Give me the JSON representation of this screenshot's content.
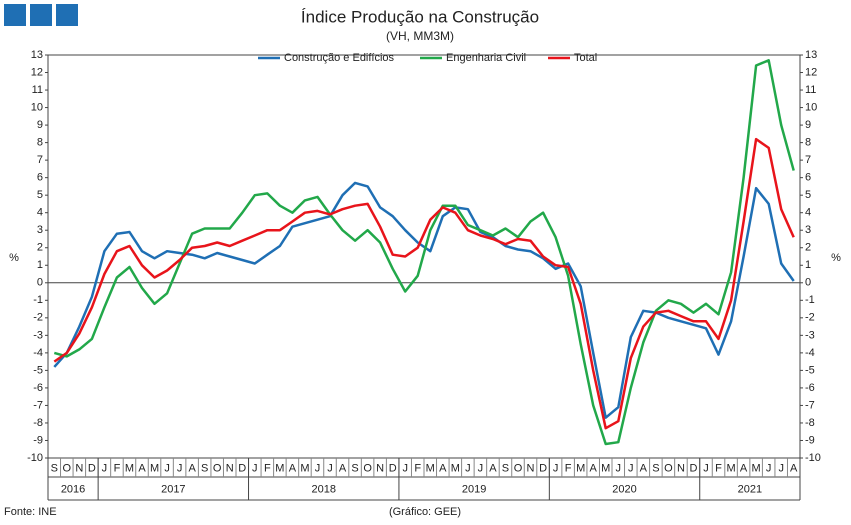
{
  "chart_data": {
    "type": "line",
    "title": "Índice Produção na Construção",
    "subtitle": "(VH, MM3M)",
    "y_label": "%",
    "source": "Fonte: INE",
    "credit": "(Gráfico: GEE)",
    "categories": [
      "S",
      "O",
      "N",
      "D",
      "J",
      "F",
      "M",
      "A",
      "M",
      "J",
      "J",
      "A",
      "S",
      "O",
      "N",
      "D",
      "J",
      "F",
      "M",
      "A",
      "M",
      "J",
      "J",
      "A",
      "S",
      "O",
      "N",
      "D",
      "J",
      "F",
      "M",
      "A",
      "M",
      "J",
      "J",
      "A",
      "S",
      "O",
      "N",
      "D",
      "J",
      "F",
      "M",
      "A",
      "M",
      "J",
      "J",
      "A",
      "S",
      "O",
      "N",
      "D",
      "J",
      "F",
      "M",
      "A",
      "M",
      "J",
      "J",
      "A"
    ],
    "years": [
      "2016",
      "2017",
      "2018",
      "2019",
      "2020",
      "2021"
    ],
    "ylim": [
      -10,
      13
    ],
    "yticks": [
      -10,
      -9,
      -8,
      -7,
      -6,
      -5,
      -4,
      -3,
      -2,
      -1,
      0,
      1,
      2,
      3,
      4,
      5,
      6,
      7,
      8,
      9,
      10,
      11,
      12,
      13
    ],
    "series": [
      {
        "name": "Construção e Edifícios",
        "color": "#1f6fb4",
        "values": [
          -4.8,
          -4.0,
          -2.5,
          -0.8,
          1.8,
          2.8,
          2.9,
          1.8,
          1.4,
          1.8,
          1.7,
          1.6,
          1.4,
          1.7,
          1.5,
          1.3,
          1.1,
          1.6,
          2.1,
          3.2,
          3.4,
          3.6,
          3.8,
          5.0,
          5.7,
          5.5,
          4.3,
          3.8,
          3.0,
          2.3,
          1.8,
          3.8,
          4.3,
          4.2,
          2.9,
          2.6,
          2.1,
          1.9,
          1.8,
          1.4,
          0.8,
          1.1,
          -0.2,
          -4.0,
          -7.7,
          -7.1,
          -3.1,
          -1.6,
          -1.7,
          -2.0,
          -2.2,
          -2.4,
          -2.6,
          -4.1,
          -2.2,
          1.5,
          5.4,
          4.5,
          1.1,
          0.1
        ]
      },
      {
        "name": "Engenharia Civil",
        "color": "#22a84a",
        "values": [
          -4.0,
          -4.2,
          -3.8,
          -3.2,
          -1.4,
          0.3,
          0.9,
          -0.3,
          -1.2,
          -0.6,
          1.1,
          2.8,
          3.1,
          3.1,
          3.1,
          4.0,
          5.0,
          5.1,
          4.4,
          4.0,
          4.7,
          4.9,
          3.9,
          3.0,
          2.4,
          3.0,
          2.3,
          0.8,
          -0.5,
          0.4,
          3.0,
          4.4,
          4.4,
          3.3,
          3.0,
          2.7,
          3.1,
          2.6,
          3.5,
          4.0,
          2.6,
          0.4,
          -3.5,
          -7.0,
          -9.2,
          -9.1,
          -6.0,
          -3.4,
          -1.6,
          -1.0,
          -1.2,
          -1.7,
          -1.2,
          -1.8,
          0.6,
          6.0,
          12.4,
          12.7,
          9.0,
          6.4
        ]
      },
      {
        "name": "Total",
        "color": "#e8141b",
        "values": [
          -4.5,
          -4.0,
          -2.9,
          -1.4,
          0.5,
          1.8,
          2.1,
          1.0,
          0.3,
          0.7,
          1.3,
          2.0,
          2.1,
          2.3,
          2.1,
          2.4,
          2.7,
          3.0,
          3.0,
          3.5,
          4.0,
          4.1,
          3.9,
          4.2,
          4.4,
          4.5,
          3.2,
          1.6,
          1.5,
          2.0,
          3.6,
          4.3,
          4.0,
          3.0,
          2.7,
          2.5,
          2.2,
          2.5,
          2.4,
          1.5,
          1.0,
          0.9,
          -1.2,
          -5.0,
          -8.3,
          -7.9,
          -4.3,
          -2.5,
          -1.7,
          -1.6,
          -1.9,
          -2.2,
          -2.2,
          -3.2,
          -1.0,
          3.5,
          8.2,
          7.7,
          4.2,
          2.6
        ]
      }
    ]
  }
}
